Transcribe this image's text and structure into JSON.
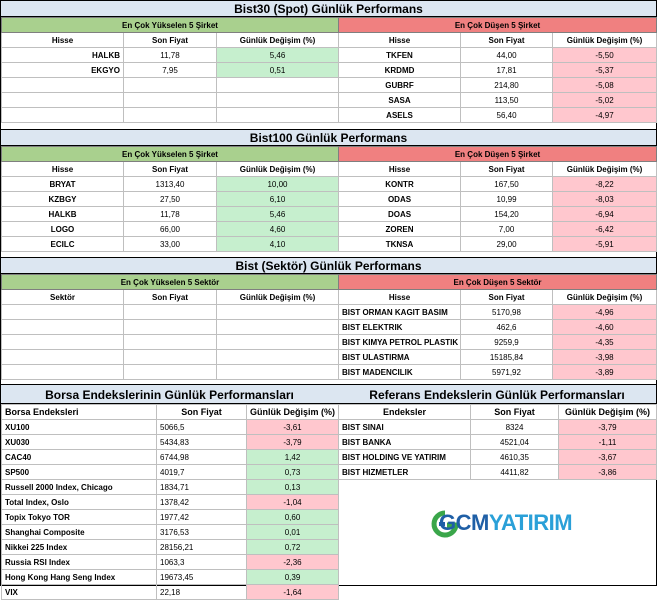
{
  "bist30": {
    "title": "Bist30 (Spot) Günlük Performans",
    "up_header": "En Çok Yükselen 5 Şirket",
    "down_header": "En Çok Düşen 5 Şirket",
    "cols": {
      "name": "Hisse",
      "price": "Son Fiyat",
      "change": "Günlük Değişim (%)"
    },
    "up": [
      {
        "name": "HALKB",
        "price": "11,78",
        "change": "5,46"
      },
      {
        "name": "EKGYO",
        "price": "7,95",
        "change": "0,51"
      },
      {
        "name": "",
        "price": "",
        "change": ""
      },
      {
        "name": "",
        "price": "",
        "change": ""
      },
      {
        "name": "",
        "price": "",
        "change": ""
      }
    ],
    "down": [
      {
        "name": "TKFEN",
        "price": "44,00",
        "change": "-5,50"
      },
      {
        "name": "KRDMD",
        "price": "17,81",
        "change": "-5,37"
      },
      {
        "name": "GUBRF",
        "price": "214,80",
        "change": "-5,08"
      },
      {
        "name": "SASA",
        "price": "113,50",
        "change": "-5,02"
      },
      {
        "name": "ASELS",
        "price": "56,40",
        "change": "-4,97"
      }
    ]
  },
  "bist100": {
    "title": "Bist100 Günlük Performans",
    "up_header": "En Çok Yükselen 5 Şirket",
    "down_header": "En Çok Düşen 5 Şirket",
    "cols": {
      "name": "Hisse",
      "price": "Son Fiyat",
      "change": "Günlük Değişim (%)"
    },
    "up": [
      {
        "name": "BRYAT",
        "price": "1313,40",
        "change": "10,00"
      },
      {
        "name": "KZBGY",
        "price": "27,50",
        "change": "6,10"
      },
      {
        "name": "HALKB",
        "price": "11,78",
        "change": "5,46"
      },
      {
        "name": "LOGO",
        "price": "66,00",
        "change": "4,60"
      },
      {
        "name": "ECILC",
        "price": "33,00",
        "change": "4,10"
      }
    ],
    "down": [
      {
        "name": "KONTR",
        "price": "167,50",
        "change": "-8,22"
      },
      {
        "name": "ODAS",
        "price": "10,99",
        "change": "-8,03"
      },
      {
        "name": "DOAS",
        "price": "154,20",
        "change": "-6,94"
      },
      {
        "name": "ZOREN",
        "price": "7,00",
        "change": "-6,42"
      },
      {
        "name": "TKNSA",
        "price": "29,00",
        "change": "-5,91"
      }
    ]
  },
  "sector": {
    "title": "Bist (Sektör) Günlük Performans",
    "up_header": "En Çok Yükselen 5 Sektör",
    "down_header": "En Çok Düşen 5 Sektör",
    "up_cols": {
      "name": "Sektör",
      "price": "Son Fiyat",
      "change": "Günlük Değişim (%)"
    },
    "down_cols": {
      "name": "Hisse",
      "price": "Son Fiyat",
      "change": "Günlük Değişim (%)"
    },
    "down": [
      {
        "name": "BIST ORMAN KAGIT BASIM",
        "price": "5170,98",
        "change": "-4,96"
      },
      {
        "name": "BIST ELEKTRIK",
        "price": "462,6",
        "change": "-4,60"
      },
      {
        "name": "BIST KIMYA PETROL PLASTIK",
        "price": "9259,9",
        "change": "-4,35"
      },
      {
        "name": "BIST ULASTIRMA",
        "price": "15185,84",
        "change": "-3,98"
      },
      {
        "name": "BIST MADENCILIK",
        "price": "5971,92",
        "change": "-3,89"
      }
    ]
  },
  "borsa": {
    "title": "Borsa Endekslerinin Günlük Performansları",
    "cols": {
      "name": "Borsa Endeksleri",
      "price": "Son Fiyat",
      "change": "Günlük Değişim (%)"
    },
    "rows": [
      {
        "name": "XU100",
        "price": "5066,5",
        "change": "-3,61",
        "dir": "down"
      },
      {
        "name": "XU030",
        "price": "5434,83",
        "change": "-3,79",
        "dir": "down"
      },
      {
        "name": "CAC40",
        "price": "6744,98",
        "change": "1,42",
        "dir": "up"
      },
      {
        "name": "SP500",
        "price": "4019,7",
        "change": "0,73",
        "dir": "up"
      },
      {
        "name": "Russell 2000 Index, Chicago",
        "price": "1834,71",
        "change": "0,13",
        "dir": "up"
      },
      {
        "name": "Total Index, Oslo",
        "price": "1378,42",
        "change": "-1,04",
        "dir": "down"
      },
      {
        "name": "Topix Tokyo TOR",
        "price": "1977,42",
        "change": "0,60",
        "dir": "up"
      },
      {
        "name": "Shanghai Composite",
        "price": "3176,53",
        "change": "0,01",
        "dir": "up"
      },
      {
        "name": "Nikkei 225 Index",
        "price": "28156,21",
        "change": "0,72",
        "dir": "up"
      },
      {
        "name": "Russia RSI Index",
        "price": "1063,3",
        "change": "-2,36",
        "dir": "down"
      },
      {
        "name": "Hong Kong Hang Seng Index",
        "price": "19673,45",
        "change": "0,39",
        "dir": "up"
      },
      {
        "name": "VIX",
        "price": "22,18",
        "change": "-1,64",
        "dir": "down"
      }
    ]
  },
  "referans": {
    "title": "Referans Endekslerin  Günlük Performansları",
    "cols": {
      "name": "Endeksler",
      "price": "Son Fiyat",
      "change": "Günlük Değişim (%)"
    },
    "rows": [
      {
        "name": "BIST SINAI",
        "price": "8324",
        "change": "-3,79"
      },
      {
        "name": "BIST BANKA",
        "price": "4521,04",
        "change": "-1,11"
      },
      {
        "name": "BIST HOLDING VE YATIRIM",
        "price": "4610,35",
        "change": "-3,67"
      },
      {
        "name": "BIST HIZMETLER",
        "price": "4411,82",
        "change": "-3,86"
      }
    ]
  },
  "logo": {
    "text_a": "GCM",
    "text_b": "YATIRIM",
    "color_a": "#1f5fa6",
    "color_b": "#2aa0d8",
    "mark_color": "#3aa64a"
  },
  "colors": {
    "up_header": "#a9d08e",
    "down_header": "#f08080",
    "up_cell": "#c6efce",
    "down_cell": "#ffc7ce",
    "title_band": "#dce6f1"
  }
}
